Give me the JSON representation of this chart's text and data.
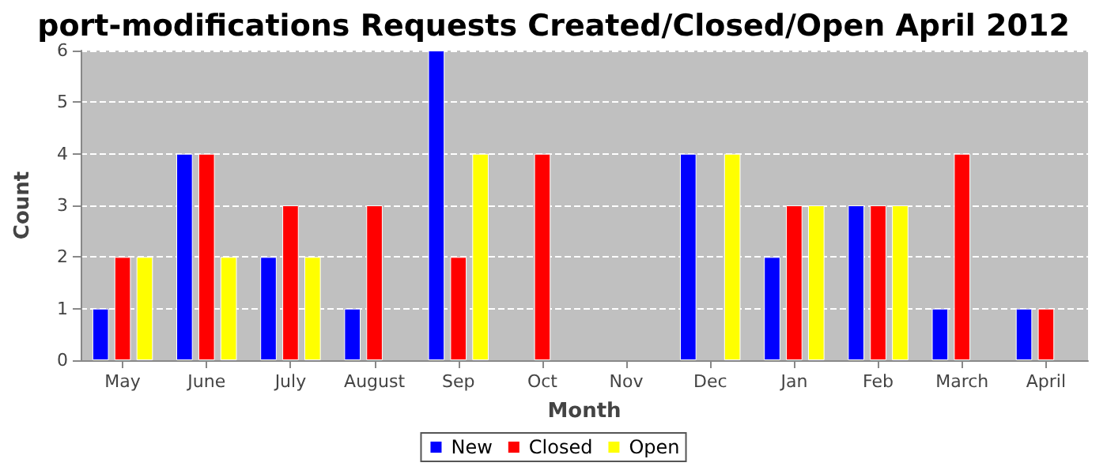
{
  "chart_data": {
    "type": "bar",
    "title": "port-modifications Requests Created/Closed/Open April 2012",
    "xlabel": "Month",
    "ylabel": "Count",
    "categories": [
      "May",
      "June",
      "July",
      "August",
      "Sep",
      "Oct",
      "Nov",
      "Dec",
      "Jan",
      "Feb",
      "March",
      "April"
    ],
    "series": [
      {
        "name": "New",
        "color": "#0000ff",
        "values": [
          1,
          4,
          2,
          1,
          6,
          null,
          null,
          4,
          2,
          3,
          1,
          1
        ]
      },
      {
        "name": "Closed",
        "color": "#ff0000",
        "values": [
          2,
          4,
          3,
          3,
          2,
          4,
          null,
          null,
          3,
          3,
          4,
          1
        ]
      },
      {
        "name": "Open",
        "color": "#ffff00",
        "values": [
          2,
          2,
          2,
          null,
          4,
          null,
          null,
          4,
          3,
          3,
          null,
          null
        ]
      }
    ],
    "ylim": [
      0,
      6
    ],
    "yticks": [
      0,
      1,
      2,
      3,
      4,
      5,
      6
    ],
    "grid": "y",
    "legend": "bottom"
  }
}
